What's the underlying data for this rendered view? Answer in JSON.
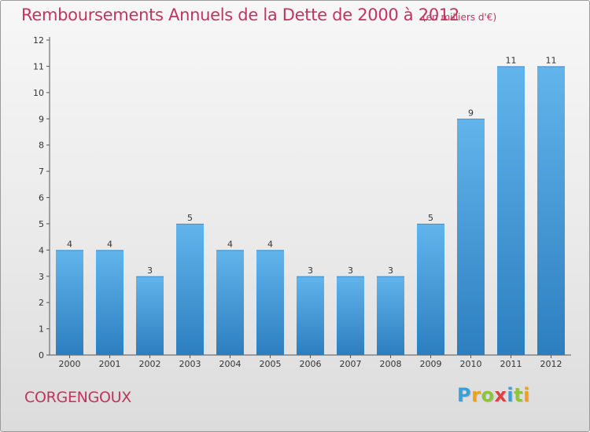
{
  "chart_data": {
    "type": "bar",
    "title": "Remboursements Annuels de la Dette de 2000 à 2012",
    "unit_note": "(en milliers d'€)",
    "categories": [
      "2000",
      "2001",
      "2002",
      "2003",
      "2004",
      "2005",
      "2006",
      "2007",
      "2008",
      "2009",
      "2010",
      "2011",
      "2012"
    ],
    "values": [
      4,
      4,
      3,
      5,
      4,
      4,
      3,
      3,
      3,
      5,
      9,
      11,
      11
    ],
    "ylim": [
      0,
      12
    ],
    "yticks": [
      0,
      1,
      2,
      3,
      4,
      5,
      6,
      7,
      8,
      9,
      10,
      11,
      12
    ],
    "grid": false,
    "bar_color_top": "#62b4ec",
    "bar_color_bottom": "#2c7fbf"
  },
  "commune": "CORGENGOUX",
  "brand": {
    "letters": [
      "P",
      "r",
      "o",
      "x",
      "i",
      "t",
      "i"
    ],
    "colors": [
      "#3aa0d8",
      "#f0a020",
      "#8cc43c",
      "#e04040",
      "#3aa0d8",
      "#8cc43c",
      "#f0a020"
    ]
  }
}
